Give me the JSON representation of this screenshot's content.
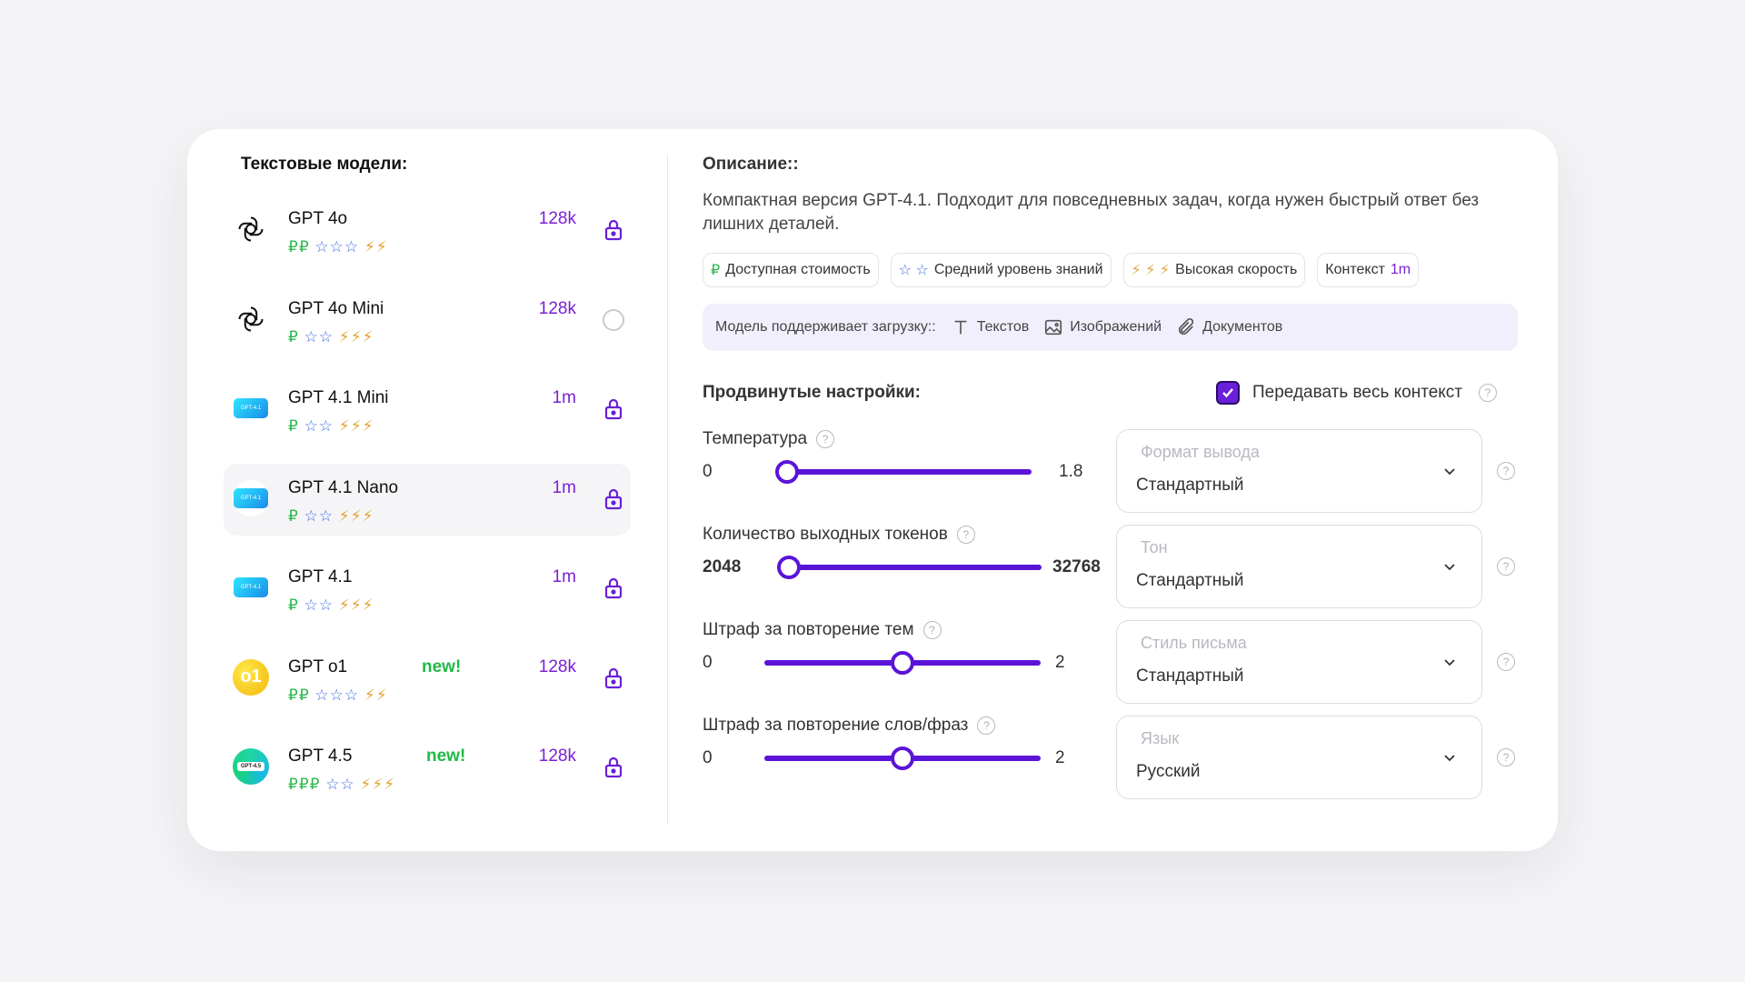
{
  "left": {
    "title": "Текстовые модели:",
    "models": [
      {
        "name": "GPT 4o",
        "new": "",
        "context": "128k",
        "rub": "₽₽",
        "stars": "☆☆☆",
        "bolts": "⚡⚡",
        "logo": "openai-icon",
        "action": "lock"
      },
      {
        "name": "GPT 4o Mini",
        "new": "",
        "context": "128k",
        "rub": "₽",
        "stars": "☆☆",
        "bolts": "⚡⚡⚡",
        "logo": "openai-icon",
        "action": "radio"
      },
      {
        "name": "GPT 4.1 Mini",
        "new": "",
        "context": "1m",
        "rub": "₽",
        "stars": "☆☆",
        "bolts": "⚡⚡⚡",
        "logo": "gpt41-tile-icon",
        "action": "lock"
      },
      {
        "name": "GPT 4.1 Nano",
        "new": "",
        "context": "1m",
        "rub": "₽",
        "stars": "☆☆",
        "bolts": "⚡⚡⚡",
        "logo": "gpt41-tile-icon",
        "action": "lock",
        "active": true
      },
      {
        "name": "GPT 4.1",
        "new": "",
        "context": "1m",
        "rub": "₽",
        "stars": "☆☆",
        "bolts": "⚡⚡⚡",
        "logo": "gpt41-tile-icon",
        "action": "lock"
      },
      {
        "name": "GPT o1",
        "new": "new!",
        "context": "128k",
        "rub": "₽₽",
        "stars": "☆☆☆",
        "bolts": "⚡⚡",
        "logo": "o1-icon",
        "action": "lock"
      },
      {
        "name": "GPT 4.5",
        "new": "new!",
        "context": "128k",
        "rub": "₽₽₽",
        "stars": "☆☆",
        "bolts": "⚡⚡⚡",
        "logo": "gpt45-icon",
        "action": "lock"
      }
    ]
  },
  "description": {
    "title": "Описание::",
    "text": "Компактная версия GPT-4.1. Подходит для повседневных задач, когда нужен быстрый ответ без лишних деталей.",
    "chips": {
      "cost": {
        "icon": "₽",
        "label": "Доступная стоимость"
      },
      "knowledge": {
        "icon": "☆ ☆",
        "label": "Средний уровень знаний"
      },
      "speed": {
        "icon": "⚡ ⚡ ⚡",
        "label": "Высокая скорость"
      },
      "context": {
        "label": "Контекст",
        "value": "1m"
      }
    },
    "uploads": {
      "label": "Модель поддерживает загрузку::",
      "texts": "Текстов",
      "images": "Изображений",
      "docs": "Документов"
    }
  },
  "advanced": {
    "title": "Продвинутые настройки:",
    "pass_context": "Передавать весь контекст",
    "help_glyph": "?",
    "sliders": {
      "temperature": {
        "label": "Температура",
        "min": "0",
        "max": "1.8",
        "value_fraction": 0.0
      },
      "tokens": {
        "label": "Количество выходных токенов",
        "min": "2048",
        "max": "32768",
        "value_fraction": 0.0
      },
      "topic_penalty": {
        "label": "Штраф за повторение тем",
        "min": "0",
        "max": "2",
        "value_fraction": 0.5
      },
      "word_penalty": {
        "label": "Штраф за повторение слов/фраз",
        "min": "0",
        "max": "2",
        "value_fraction": 0.5
      }
    },
    "selects": {
      "format": {
        "placeholder": "Формат вывода",
        "value": "Стандартный"
      },
      "tone": {
        "placeholder": "Тон",
        "value": "Стандартный"
      },
      "style": {
        "placeholder": "Стиль письма",
        "value": "Стандартный"
      },
      "language": {
        "placeholder": "Язык",
        "value": "Русский"
      }
    }
  },
  "colors": {
    "accent": "#5a14d8",
    "context": "#7a1fd6",
    "new": "#1fbb45",
    "rub": "#2cb84f",
    "star": "#3b6be0",
    "bolt": "#e2a43a"
  }
}
